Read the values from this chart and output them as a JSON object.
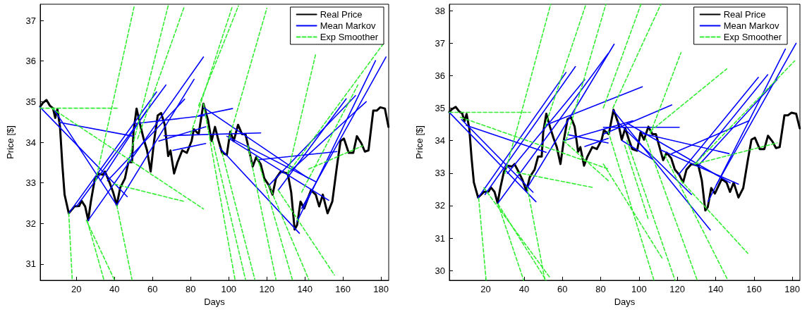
{
  "chart_data": [
    {
      "type": "line",
      "xlabel": "Days",
      "ylabel": "Price [$]",
      "xlim": [
        1,
        184
      ],
      "ylim": [
        30.6,
        37.4
      ],
      "xticks": [
        20,
        40,
        60,
        80,
        100,
        120,
        140,
        160,
        180
      ],
      "yticks": [
        31,
        32,
        33,
        34,
        35,
        36,
        37
      ],
      "legend": "top right",
      "grid": false,
      "series": [
        {
          "name": "Real Price",
          "color": "#000000",
          "x": [
            1,
            2.4,
            4.3,
            6.1,
            7.7,
            8.9,
            10,
            11.4,
            12.6,
            13.8,
            16,
            19,
            21.5,
            22.7,
            24.6,
            26.2,
            27.6,
            29.5,
            31.3,
            33.8,
            35,
            37.5,
            39.3,
            41.2,
            43,
            45.5,
            47.3,
            49.2,
            50,
            51.6,
            53.5,
            55.3,
            57.1,
            59,
            60.8,
            62.7,
            64.5,
            66.4,
            68.2,
            69.4,
            71.3,
            73.1,
            75.6,
            78,
            80.5,
            81.7,
            84.2,
            86.7,
            89.1,
            91,
            92.8,
            94.7,
            96.5,
            99,
            100.8,
            102.6,
            104.9,
            107,
            108.8,
            110.7,
            112.6,
            114.4,
            116.8,
            118.7,
            121.1,
            123,
            124.8,
            127.3,
            131,
            132.8,
            134.6,
            135.9,
            137.7,
            139.6,
            141.4,
            143.2,
            145.7,
            147.5,
            149.4,
            151.9,
            154.4,
            156.8,
            158.7,
            160.5,
            163,
            165.4,
            167.3,
            169.7,
            171.5,
            173.4,
            175.9,
            177.7,
            179.6,
            182,
            183.9
          ],
          "values": [
            34.88,
            34.97,
            35.04,
            34.9,
            34.84,
            34.6,
            34.82,
            34.38,
            33.46,
            32.71,
            32.25,
            32.42,
            32.43,
            32.56,
            32.42,
            32.08,
            32.54,
            33.05,
            33.23,
            33.2,
            33.28,
            33.0,
            32.77,
            32.45,
            32.88,
            33.11,
            33.51,
            33.51,
            34.26,
            34.83,
            34.43,
            34.09,
            33.8,
            33.28,
            34.03,
            34.66,
            34.72,
            34.43,
            33.66,
            33.8,
            33.23,
            33.51,
            33.8,
            33.74,
            34.03,
            34.32,
            34.2,
            34.95,
            34.55,
            34.03,
            34.38,
            34.03,
            33.74,
            33.69,
            34.26,
            34.03,
            34.43,
            34.2,
            34.2,
            33.8,
            33.4,
            33.63,
            33.46,
            33.11,
            32.94,
            32.71,
            33.11,
            33.28,
            33.23,
            32.77,
            31.85,
            31.96,
            32.54,
            32.37,
            32.6,
            32.82,
            32.71,
            32.42,
            32.71,
            32.25,
            32.54,
            33.4,
            34.03,
            34.09,
            33.74,
            33.74,
            34.15,
            33.97,
            33.77,
            33.8,
            34.78,
            34.78,
            34.86,
            34.83,
            34.38
          ]
        },
        {
          "name": "Mean Markov",
          "color": "#0000ff",
          "x": [
            1,
            46.7
          ],
          "values": [
            34.86,
            32.66
          ]
        },
        {
          "name": "Exp Smoother",
          "color": "#33ee33",
          "line_style": "dashed",
          "x": [
            1,
            42.4
          ],
          "values": [
            34.84,
            34.84
          ]
        },
        {
          "color": "#0000ff",
          "x": [
            7.9,
            41.2
          ],
          "values": [
            34.83,
            32.45
          ]
        },
        {
          "color": "#0000ff",
          "x": [
            11,
            49.8
          ],
          "values": [
            34.49,
            34.15
          ]
        },
        {
          "color": "#0000ff",
          "x": [
            16,
            62.1
          ],
          "values": [
            32.25,
            35.24
          ]
        },
        {
          "color": "#0000ff",
          "x": [
            20.2,
            67
          ],
          "values": [
            32.43,
            35.41
          ]
        },
        {
          "color": "#0000ff",
          "x": [
            25.8,
            86.7
          ],
          "values": [
            32.05,
            36.1
          ]
        },
        {
          "color": "#0000ff",
          "x": [
            41.2,
            81.8
          ],
          "values": [
            32.45,
            35.55
          ]
        },
        {
          "color": "#0000ff",
          "x": [
            36.3,
            76.8
          ],
          "values": [
            33.05,
            35.06
          ]
        },
        {
          "color": "#0000ff",
          "x": [
            32.6,
            57.1
          ],
          "values": [
            33.05,
            34.8
          ]
        },
        {
          "color": "#0000ff",
          "x": [
            51,
            87.9
          ],
          "values": [
            34.46,
            34.66
          ]
        },
        {
          "color": "#0000ff",
          "x": [
            63.3,
            87.9
          ],
          "values": [
            34.03,
            34.38
          ]
        },
        {
          "color": "#0000ff",
          "x": [
            70.7,
            87.9
          ],
          "values": [
            33.8,
            33.97
          ]
        },
        {
          "color": "#0000ff",
          "x": [
            84.2,
            102
          ],
          "values": [
            34.66,
            34.83
          ]
        },
        {
          "color": "#0000ff",
          "x": [
            86.7,
            141.9
          ],
          "values": [
            34.86,
            33.11
          ]
        },
        {
          "color": "#0000ff",
          "x": [
            66,
            116.8
          ],
          "values": [
            34.16,
            34.23
          ]
        },
        {
          "color": "#0000ff",
          "x": [
            95.3,
            137.1
          ],
          "values": [
            33.86,
            31.76
          ]
        },
        {
          "color": "#0000ff",
          "x": [
            100.2,
            152.5
          ],
          "values": [
            34.09,
            32.57
          ]
        },
        {
          "color": "#0000ff",
          "x": [
            99,
            145.7
          ],
          "values": [
            34.15,
            33.03
          ]
        },
        {
          "color": "#0000ff",
          "x": [
            116,
            156.8
          ],
          "values": [
            33.57,
            33.77
          ]
        },
        {
          "color": "#0000ff",
          "x": [
            121.1,
            166.6
          ],
          "values": [
            32.94,
            35.15
          ]
        },
        {
          "color": "#0000ff",
          "x": [
            126,
            161.7
          ],
          "values": [
            32.82,
            35.07
          ]
        },
        {
          "color": "#0000ff",
          "x": [
            131,
            172.2
          ],
          "values": [
            33.23,
            35.0
          ]
        },
        {
          "color": "#0000ff",
          "x": [
            135.9,
            177.1
          ],
          "values": [
            32.05,
            36.01
          ]
        },
        {
          "color": "#0000ff",
          "x": [
            138.3,
            182.6
          ],
          "values": [
            32.37,
            36.1
          ]
        },
        {
          "color": "#33ee33",
          "line_style": "dashed",
          "x": [
            7,
            86.7
          ],
          "values": [
            34.84,
            32.36
          ]
        },
        {
          "color": "#33ee33",
          "line_style": "dashed",
          "x": [
            39.9,
            76.8
          ],
          "values": [
            32.97,
            32.54
          ]
        },
        {
          "color": "#33ee33",
          "line_style": "dashed",
          "x": [
            16,
            17.8
          ],
          "values": [
            32.25,
            30.62
          ]
        },
        {
          "color": "#33ee33",
          "line_style": "dashed",
          "x": [
            25.8,
            34.4
          ],
          "values": [
            32.05,
            30.62
          ]
        },
        {
          "color": "#33ee33",
          "line_style": "dashed",
          "x": [
            25.2,
            39.9
          ],
          "values": [
            32.08,
            30.62
          ]
        },
        {
          "color": "#33ee33",
          "line_style": "dashed",
          "x": [
            41.2,
            49.2
          ],
          "values": [
            32.45,
            30.62
          ]
        },
        {
          "color": "#33ee33",
          "line_style": "dashed",
          "x": [
            30.1,
            50.4
          ],
          "values": [
            33.05,
            37.36
          ]
        },
        {
          "color": "#33ee33",
          "line_style": "dashed",
          "x": [
            47.3,
            68.2
          ],
          "values": [
            33.51,
            37.36
          ]
        },
        {
          "color": "#33ee33",
          "line_style": "dashed",
          "x": [
            52.2,
            76.8
          ],
          "values": [
            34.09,
            37.36
          ]
        },
        {
          "color": "#33ee33",
          "line_style": "dashed",
          "x": [
            84.2,
            105.1
          ],
          "values": [
            34.9,
            37.36
          ]
        },
        {
          "color": "#33ee33",
          "line_style": "dashed",
          "x": [
            80,
            102
          ],
          "values": [
            34.2,
            37.36
          ]
        },
        {
          "color": "#33ee33",
          "line_style": "dashed",
          "x": [
            100.2,
            120
          ],
          "values": [
            34.09,
            37.3
          ]
        },
        {
          "color": "#33ee33",
          "line_style": "dashed",
          "x": [
            131,
            145.7
          ],
          "values": [
            33.23,
            36.18
          ]
        },
        {
          "color": "#33ee33",
          "line_style": "dashed",
          "x": [
            131,
            181.4
          ],
          "values": [
            33.23,
            36.44
          ]
        },
        {
          "color": "#33ee33",
          "line_style": "dashed",
          "x": [
            138.3,
            167.8
          ],
          "values": [
            32.77,
            35.41
          ]
        },
        {
          "color": "#33ee33",
          "line_style": "dashed",
          "x": [
            142,
            170.3
          ],
          "values": [
            33.34,
            33.91
          ]
        },
        {
          "color": "#33ee33",
          "line_style": "dashed",
          "x": [
            86.7,
            103.3
          ],
          "values": [
            34.95,
            30.62
          ]
        },
        {
          "color": "#33ee33",
          "line_style": "dashed",
          "x": [
            91.6,
            108.8
          ],
          "values": [
            34.03,
            30.62
          ]
        },
        {
          "color": "#33ee33",
          "line_style": "dashed",
          "x": [
            96.5,
            113.7
          ],
          "values": [
            33.74,
            30.62
          ]
        },
        {
          "color": "#33ee33",
          "line_style": "dashed",
          "x": [
            110.1,
            124.8
          ],
          "values": [
            33.92,
            30.62
          ]
        },
        {
          "color": "#33ee33",
          "line_style": "dashed",
          "x": [
            115,
            133.4
          ],
          "values": [
            33.63,
            30.62
          ]
        },
        {
          "color": "#33ee33",
          "line_style": "dashed",
          "x": [
            121.1,
            142
          ],
          "values": [
            32.94,
            30.62
          ]
        },
        {
          "color": "#33ee33",
          "line_style": "dashed",
          "x": [
            126,
            155.5
          ],
          "values": [
            32.82,
            30.73
          ]
        }
      ]
    },
    {
      "type": "line",
      "xlabel": "Days",
      "ylabel": "Price [$]",
      "xlim": [
        1,
        184
      ],
      "ylim": [
        29.7,
        38.2
      ],
      "xticks": [
        20,
        40,
        60,
        80,
        100,
        120,
        140,
        160,
        180
      ],
      "yticks": [
        30,
        31,
        32,
        33,
        34,
        35,
        36,
        37,
        38
      ],
      "legend": "top right",
      "grid": false,
      "series": [
        {
          "name": "Real Price",
          "color": "#000000",
          "x": [
            1,
            2.4,
            4.3,
            6.1,
            7.7,
            8.9,
            10,
            11.4,
            12.6,
            13.8,
            16,
            19,
            21.5,
            22.7,
            24.6,
            26.2,
            27.6,
            29.5,
            31.3,
            33.8,
            35,
            37.5,
            39.3,
            41.2,
            43,
            45.5,
            47.3,
            49.2,
            50,
            51.6,
            53.5,
            55.3,
            57.1,
            59,
            60.8,
            62.7,
            64.5,
            66.4,
            68.2,
            69.4,
            71.3,
            73.1,
            75.6,
            78,
            80.5,
            81.7,
            84.2,
            86.7,
            89.1,
            91,
            92.8,
            94.7,
            96.5,
            99,
            100.8,
            102.6,
            104.9,
            107,
            108.8,
            110.7,
            112.6,
            114.4,
            116.8,
            118.7,
            121.1,
            123,
            124.8,
            127.3,
            131,
            132.8,
            134.6,
            135.9,
            137.7,
            139.6,
            141.4,
            143.2,
            145.7,
            147.5,
            149.4,
            151.9,
            154.4,
            156.8,
            158.7,
            160.5,
            163,
            165.4,
            167.3,
            169.7,
            171.5,
            173.4,
            175.9,
            177.7,
            179.6,
            182,
            183.9
          ],
          "values": [
            34.88,
            34.97,
            35.04,
            34.9,
            34.84,
            34.6,
            34.82,
            34.38,
            33.46,
            32.71,
            32.25,
            32.42,
            32.43,
            32.56,
            32.42,
            32.08,
            32.54,
            33.05,
            33.23,
            33.2,
            33.28,
            33.0,
            32.77,
            32.45,
            32.88,
            33.11,
            33.51,
            33.51,
            34.26,
            34.83,
            34.43,
            34.09,
            33.8,
            33.28,
            34.03,
            34.66,
            34.72,
            34.43,
            33.66,
            33.8,
            33.23,
            33.51,
            33.8,
            33.74,
            34.03,
            34.32,
            34.2,
            34.95,
            34.55,
            34.03,
            34.38,
            34.03,
            33.74,
            33.69,
            34.26,
            34.03,
            34.43,
            34.2,
            34.2,
            33.8,
            33.4,
            33.63,
            33.46,
            33.11,
            32.94,
            32.71,
            33.11,
            33.28,
            33.23,
            32.77,
            31.85,
            31.96,
            32.54,
            32.37,
            32.6,
            32.82,
            32.71,
            32.42,
            32.71,
            32.25,
            32.54,
            33.4,
            34.03,
            34.09,
            33.74,
            33.74,
            34.15,
            33.97,
            33.77,
            33.8,
            34.78,
            34.78,
            34.86,
            34.83,
            34.38
          ]
        },
        {
          "name": "Mean Markov",
          "color": "#0000ff",
          "x": [
            1,
            46.2
          ],
          "values": [
            34.87,
            32.12
          ]
        },
        {
          "name": "Exp Smoother",
          "color": "#33ee33",
          "line_style": "dashed",
          "x": [
            1,
            43.3
          ],
          "values": [
            34.87,
            34.87
          ]
        },
        {
          "color": "#0000ff",
          "x": [
            7.4,
            44.7
          ],
          "values": [
            34.65,
            32.41
          ]
        },
        {
          "color": "#0000ff",
          "x": [
            9.8,
            51.5
          ],
          "values": [
            34.47,
            33.64
          ]
        },
        {
          "color": "#0000ff",
          "x": [
            15.9,
            61.9
          ],
          "values": [
            32.23,
            36.1
          ]
        },
        {
          "color": "#0000ff",
          "x": [
            19.6,
            66.8
          ],
          "values": [
            32.34,
            36.28
          ]
        },
        {
          "color": "#0000ff",
          "x": [
            26.4,
            83.9
          ],
          "values": [
            32.08,
            36.68
          ]
        },
        {
          "color": "#0000ff",
          "x": [
            31.3,
            71.7
          ],
          "values": [
            32.99,
            35.88
          ]
        },
        {
          "color": "#0000ff",
          "x": [
            41.7,
            87
          ],
          "values": [
            32.55,
            36.97
          ]
        },
        {
          "color": "#0000ff",
          "x": [
            50.9,
            101.7
          ],
          "values": [
            34.47,
            35.66
          ]
        },
        {
          "color": "#0000ff",
          "x": [
            60.6,
            96.8
          ],
          "values": [
            34.0,
            34.61
          ]
        },
        {
          "color": "#0000ff",
          "x": [
            63.1,
            83.9
          ],
          "values": [
            34.18,
            33.93
          ]
        },
        {
          "color": "#0000ff",
          "x": [
            71.7,
            83.9
          ],
          "values": [
            33.82,
            34.07
          ]
        },
        {
          "color": "#0000ff",
          "x": [
            81.4,
            121
          ],
          "values": [
            34.41,
            34.41
          ]
        },
        {
          "color": "#0000ff",
          "x": [
            81.4,
            117.1
          ],
          "values": [
            34.2,
            35.1
          ]
        },
        {
          "color": "#0000ff",
          "x": [
            86.4,
            137.2
          ],
          "values": [
            34.94,
            31.25
          ]
        },
        {
          "color": "#0000ff",
          "x": [
            88.8,
            127.4
          ],
          "values": [
            34.58,
            32.34
          ]
        },
        {
          "color": "#0000ff",
          "x": [
            91.2,
            107.2
          ],
          "values": [
            34.0,
            33.42
          ]
        },
        {
          "color": "#0000ff",
          "x": [
            93.7,
            147.6
          ],
          "values": [
            34.54,
            32.7
          ]
        },
        {
          "color": "#0000ff",
          "x": [
            101.7,
            147
          ],
          "values": [
            34.22,
            33.6
          ]
        },
        {
          "color": "#0000ff",
          "x": [
            111.4,
            151.9
          ],
          "values": [
            33.71,
            32.66
          ]
        },
        {
          "color": "#0000ff",
          "x": [
            117,
            157.4
          ],
          "values": [
            33.6,
            34.61
          ]
        },
        {
          "color": "#0000ff",
          "x": [
            120.6,
            162.3
          ],
          "values": [
            32.95,
            35.95
          ]
        },
        {
          "color": "#0000ff",
          "x": [
            129.2,
            167.2
          ],
          "values": [
            33.28,
            36.03
          ]
        },
        {
          "color": "#0000ff",
          "x": [
            131.7,
            172.1
          ],
          "values": [
            33.28,
            35.88
          ]
        },
        {
          "color": "#0000ff",
          "x": [
            136,
            176.4
          ],
          "values": [
            32.12,
            36.82
          ]
        },
        {
          "color": "#0000ff",
          "x": [
            140.3,
            182
          ],
          "values": [
            32.63,
            37.0
          ]
        },
        {
          "color": "#33ee33",
          "line_style": "dashed",
          "x": [
            6.8,
            83.9
          ],
          "values": [
            34.72,
            33.13
          ]
        },
        {
          "color": "#33ee33",
          "line_style": "dashed",
          "x": [
            36.2,
            76.6
          ],
          "values": [
            33.02,
            32.55
          ]
        },
        {
          "color": "#33ee33",
          "line_style": "dashed",
          "x": [
            16.3,
            20.2
          ],
          "values": [
            32.23,
            29.7
          ]
        },
        {
          "color": "#33ee33",
          "line_style": "dashed",
          "x": [
            26.4,
            39.8
          ],
          "values": [
            32.05,
            29.7
          ]
        },
        {
          "color": "#33ee33",
          "line_style": "dashed",
          "x": [
            26.4,
            51.5
          ],
          "values": [
            32.05,
            29.7
          ]
        },
        {
          "color": "#33ee33",
          "line_style": "dashed",
          "x": [
            19,
            53.3
          ],
          "values": [
            32.55,
            29.8
          ]
        },
        {
          "color": "#33ee33",
          "line_style": "dashed",
          "x": [
            41.7,
            50.9
          ],
          "values": [
            32.55,
            29.7
          ]
        },
        {
          "color": "#33ee33",
          "line_style": "dashed",
          "x": [
            30,
            53.9
          ],
          "values": [
            32.99,
            38.2
          ]
        },
        {
          "color": "#33ee33",
          "line_style": "dashed",
          "x": [
            50.9,
            72.3
          ],
          "values": [
            34.43,
            38.2
          ]
        },
        {
          "color": "#33ee33",
          "line_style": "dashed",
          "x": [
            61.9,
            82.7
          ],
          "values": [
            34.0,
            38.2
          ]
        },
        {
          "color": "#33ee33",
          "line_style": "dashed",
          "x": [
            60.6,
            83.9
          ],
          "values": [
            34.0,
            32.77
          ]
        },
        {
          "color": "#33ee33",
          "line_style": "dashed",
          "x": [
            81.4,
            101
          ],
          "values": [
            35.01,
            38.2
          ]
        },
        {
          "color": "#33ee33",
          "line_style": "dashed",
          "x": [
            86.4,
            111.4
          ],
          "values": [
            35.01,
            38.2
          ]
        },
        {
          "color": "#33ee33",
          "line_style": "dashed",
          "x": [
            105.9,
            121.9
          ],
          "values": [
            34.22,
            36.71
          ]
        },
        {
          "color": "#33ee33",
          "line_style": "dashed",
          "x": [
            105.9,
            145.8
          ],
          "values": [
            34.29,
            36.21
          ]
        },
        {
          "color": "#33ee33",
          "line_style": "dashed",
          "x": [
            129.2,
            181.3
          ],
          "values": [
            33.28,
            36.46
          ]
        },
        {
          "color": "#33ee33",
          "line_style": "dashed",
          "x": [
            129.2,
            172
          ],
          "values": [
            33.28,
            33.93
          ]
        },
        {
          "color": "#33ee33",
          "line_style": "dashed",
          "x": [
            81.4,
            112.1
          ],
          "values": [
            33.28,
            30.38
          ]
        },
        {
          "color": "#33ee33",
          "line_style": "dashed",
          "x": [
            83.9,
            107.8
          ],
          "values": [
            34.29,
            29.7
          ]
        },
        {
          "color": "#33ee33",
          "line_style": "dashed",
          "x": [
            93.7,
            118.8
          ],
          "values": [
            34.0,
            29.7
          ]
        },
        {
          "color": "#33ee33",
          "line_style": "dashed",
          "x": [
            103.5,
            130.4
          ],
          "values": [
            34.07,
            29.7
          ]
        },
        {
          "color": "#33ee33",
          "line_style": "dashed",
          "x": [
            113.3,
            146.4
          ],
          "values": [
            33.57,
            29.7
          ]
        },
        {
          "color": "#33ee33",
          "line_style": "dashed",
          "x": [
            121.9,
            156.8
          ],
          "values": [
            32.77,
            30.53
          ]
        },
        {
          "color": "#33ee33",
          "line_style": "dashed",
          "x": [
            92.5,
            104.7
          ],
          "values": [
            33.86,
            31.61
          ]
        }
      ]
    }
  ]
}
